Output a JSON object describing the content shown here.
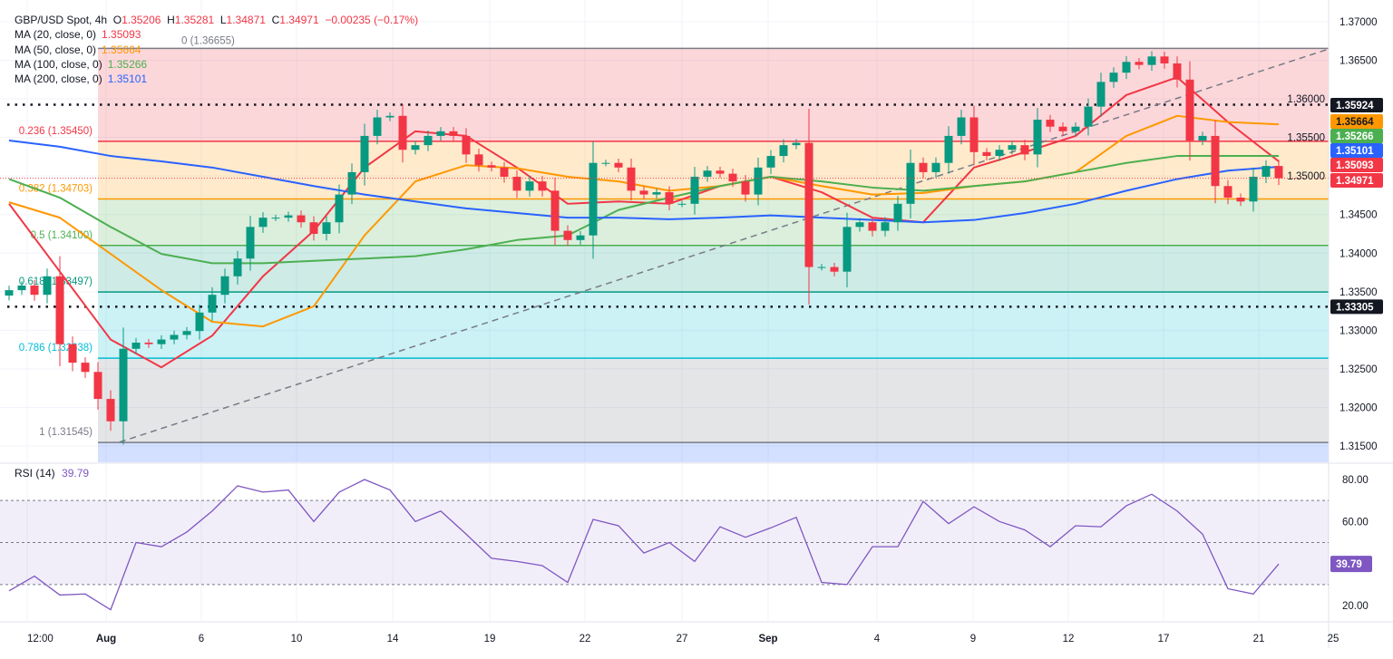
{
  "legend": {
    "symbol": "GBP/USD Spot, 4h",
    "o_label": "O",
    "o": "1.35206",
    "h_label": "H",
    "h": "1.35281",
    "l_label": "L",
    "l": "1.34871",
    "c_label": "C",
    "c": "1.34971",
    "change": "−0.00235 (−0.17%)",
    "mas": [
      {
        "label": "MA (20, close, 0)",
        "value": "1.35093",
        "color": "#f23645"
      },
      {
        "label": "MA (50, close, 0)",
        "value": "1.35664",
        "color": "#ff9800"
      },
      {
        "label": "MA (100, close, 0)",
        "value": "1.35266",
        "color": "#4caf50"
      },
      {
        "label": "MA (200, close, 0)",
        "value": "1.35101",
        "color": "#2962ff"
      }
    ]
  },
  "rsi_legend": {
    "label": "RSI (14)",
    "value": "39.79",
    "color": "#7e57c2"
  },
  "chart_data": [
    {
      "type": "candlestick",
      "title": "GBP/USD Spot, 4h",
      "ylim": [
        1.313,
        1.372
      ],
      "y_ticks": [
        "1.37000",
        "1.36500",
        "1.36000",
        "1.35500",
        "1.35000",
        "1.34500",
        "1.34000",
        "1.33500",
        "1.33000",
        "1.32500",
        "1.32000",
        "1.31500"
      ],
      "x_ticks": [
        "12:00",
        "Aug",
        "6",
        "10",
        "14",
        "19",
        "22",
        "27",
        "Sep",
        "4",
        "9",
        "12",
        "17",
        "21",
        "25"
      ],
      "first_open": 1.3345,
      "close": [
        1.3352,
        1.3358,
        1.3346,
        1.337,
        1.3282,
        1.3258,
        1.3246,
        1.3211,
        1.3182,
        1.3276,
        1.3284,
        1.3282,
        1.3288,
        1.3294,
        1.3299,
        1.3323,
        1.3346,
        1.337,
        1.3393,
        1.3434,
        1.3446,
        1.3446,
        1.3449,
        1.344,
        1.3425,
        1.344,
        1.3476,
        1.3505,
        1.3552,
        1.3576,
        1.3578,
        1.3534,
        1.354,
        1.3552,
        1.3558,
        1.3552,
        1.3528,
        1.3514,
        1.3511,
        1.3499,
        1.3481,
        1.3493,
        1.3481,
        1.3429,
        1.3417,
        1.3423,
        1.3517,
        1.3517,
        1.3511,
        1.3481,
        1.3476,
        1.3479,
        1.3464,
        1.3464,
        1.3499,
        1.3507,
        1.3503,
        1.3493,
        1.3476,
        1.3511,
        1.3526,
        1.354,
        1.3543,
        1.3382,
        1.3382,
        1.3376,
        1.3434,
        1.344,
        1.3429,
        1.344,
        1.3464,
        1.3517,
        1.3505,
        1.3517,
        1.3552,
        1.3576,
        1.3531,
        1.3526,
        1.3534,
        1.354,
        1.3528,
        1.3573,
        1.3564,
        1.3558,
        1.3564,
        1.359,
        1.3622,
        1.3634,
        1.3648,
        1.3644,
        1.3655,
        1.3646,
        1.3625,
        1.3546,
        1.3552,
        1.3487,
        1.3472,
        1.3467,
        1.3499,
        1.3513,
        1.34971
      ],
      "ma_sample_step": 4,
      "moving_averages": [
        {
          "name": "MA (20, close, 0)",
          "color": "#f23645",
          "values": [
            1.3464,
            1.3376,
            1.3288,
            1.3252,
            1.3293,
            1.337,
            1.3429,
            1.3511,
            1.3558,
            1.3552,
            1.3511,
            1.3464,
            1.3467,
            1.3464,
            1.3487,
            1.3499,
            1.3479,
            1.3446,
            1.344,
            1.3511,
            1.3531,
            1.3552,
            1.3605,
            1.3628,
            1.357,
            1.3519
          ]
        },
        {
          "name": "MA (50, close, 0)",
          "color": "#ff9800",
          "values": [
            1.3466,
            1.3446,
            1.3399,
            1.3352,
            1.3311,
            1.3305,
            1.3331,
            1.3423,
            1.3493,
            1.3514,
            1.351,
            1.3499,
            1.3493,
            1.3481,
            1.3487,
            1.3499,
            1.3487,
            1.3476,
            1.3478,
            1.3487,
            1.3493,
            1.3505,
            1.3552,
            1.3578,
            1.357,
            1.3567
          ]
        },
        {
          "name": "MA (100, close, 0)",
          "color": "#4caf50",
          "values": [
            1.3496,
            1.3472,
            1.3434,
            1.3399,
            1.3387,
            1.3387,
            1.339,
            1.3393,
            1.3396,
            1.3405,
            1.3417,
            1.3423,
            1.3456,
            1.3472,
            1.3487,
            1.3499,
            1.3493,
            1.3485,
            1.3481,
            1.3487,
            1.3493,
            1.3505,
            1.3517,
            1.3526,
            1.3526,
            1.3526
          ]
        },
        {
          "name": "MA (200, close, 0)",
          "color": "#2962ff",
          "values": [
            1.3546,
            1.3538,
            1.3526,
            1.3519,
            1.3511,
            1.3499,
            1.3487,
            1.3476,
            1.3467,
            1.3458,
            1.3452,
            1.3446,
            1.3446,
            1.3444,
            1.3446,
            1.3449,
            1.3446,
            1.3443,
            1.344,
            1.3443,
            1.3452,
            1.3464,
            1.3481,
            1.3496,
            1.3507,
            1.3512
          ]
        }
      ],
      "fibonacci": [
        {
          "level": "0",
          "price": 1.36655,
          "label": "0 (1.36655)",
          "color": "#787b86",
          "zone": "rgba(242,54,69,0.2)"
        },
        {
          "level": "0.236",
          "price": 1.3545,
          "label": "0.236 (1.35450)",
          "color": "#f23645",
          "zone": "rgba(255,152,0,0.2)"
        },
        {
          "level": "0.382",
          "price": 1.34703,
          "label": "0.382 (1.34703)",
          "color": "#ff9800",
          "zone": "rgba(76,175,80,0.2)"
        },
        {
          "level": "0.5",
          "price": 1.341,
          "label": "0.5 (1.34100)",
          "color": "#4caf50",
          "zone": "rgba(8,153,129,0.2)"
        },
        {
          "level": "0.618",
          "price": 1.33497,
          "label": "0.618 (1.33497)",
          "color": "#089981",
          "zone": "rgba(0,188,212,0.2)"
        },
        {
          "level": "0.786",
          "price": 1.32638,
          "label": "0.786 (1.32638)",
          "color": "#00bcd4",
          "zone": "rgba(120,123,134,0.2)"
        },
        {
          "level": "1",
          "price": 1.31545,
          "label": "1 (1.31545)",
          "color": "#787b86",
          "zone": "rgba(41,98,255,0.2)"
        }
      ],
      "horizontal_levels": [
        {
          "price": 1.35924,
          "label": "1.35924",
          "style": "dotted",
          "color": "#131722"
        },
        {
          "price": 1.33305,
          "label": "1.33305",
          "style": "dotted",
          "color": "#131722"
        }
      ],
      "trendline": {
        "start": {
          "bar": 8.7,
          "price": 1.3155
        },
        "end": {
          "bar": 104,
          "price": 1.3665
        },
        "style": "dashed",
        "color": "#787b86"
      },
      "price_badges": [
        {
          "label": "1.35924",
          "color": "#131722"
        },
        {
          "label": "1.35664",
          "color": "#ff9800"
        },
        {
          "label": "1.35266",
          "color": "#4caf50"
        },
        {
          "label": "1.35101",
          "color": "#2962ff"
        },
        {
          "label": "1.35093",
          "color": "#f23645"
        },
        {
          "label": "1.34971",
          "color": "#f23645"
        }
      ],
      "up_color": "#089981",
      "down_color": "#f23645"
    },
    {
      "type": "line",
      "title": "RSI (14)",
      "ylim": [
        12,
        86
      ],
      "y_ticks": [
        "80.00",
        "60.00",
        "20.00"
      ],
      "bands": {
        "upper": 70,
        "middle": 50,
        "lower": 30
      },
      "sample_step": 2,
      "values": [
        27,
        34,
        25,
        25.5,
        18,
        50,
        48,
        55,
        65,
        77,
        74,
        75,
        60,
        74,
        80,
        75,
        60,
        65,
        54,
        42.5,
        41,
        39,
        31,
        61,
        58,
        45,
        50,
        41,
        57.5,
        52.5,
        57,
        62,
        31,
        30,
        48,
        48,
        69.6,
        59,
        67,
        60,
        56,
        48,
        58,
        57.5,
        67.5,
        73,
        65,
        54,
        28,
        25.5,
        39.79
      ],
      "current_label": "39.79",
      "color": "#7e57c2"
    }
  ]
}
